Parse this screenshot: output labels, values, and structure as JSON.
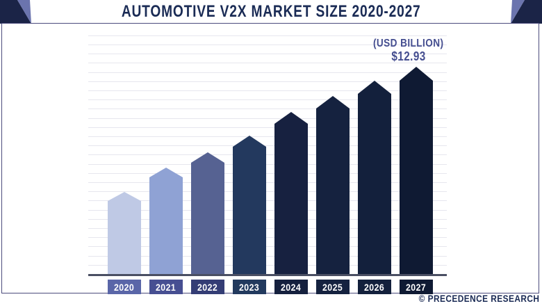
{
  "header": {
    "title": "AUTOMOTIVE V2X MARKET SIZE 2020-2027"
  },
  "annotation": {
    "unit_label": "(USD BILLION)",
    "value_label": "$12.93"
  },
  "footer": {
    "credit": "© PRECEDENCE RESEARCH"
  },
  "colors": {
    "title_text": "#1a2b55",
    "frame_border": "#4a4a7c",
    "corner_dark": "#1b2447",
    "corner_light": "#6b74ae",
    "gridline": "#e6e6ee",
    "axis": "#4a4f63",
    "annotation_text": "#454e90",
    "year_label_text": "#ffffff",
    "footer_text": "#1b2b55",
    "bar_colors": [
      "#bfc9e5",
      "#8fa2d4",
      "#566292",
      "#23395e",
      "#172140",
      "#15223f",
      "#13203c",
      "#0f1a33"
    ],
    "year_box_colors": [
      "#5a66a8",
      "#474f92",
      "#343d75",
      "#223a5e",
      "#15203e",
      "#15223f",
      "#13203c",
      "#0f1a33"
    ]
  },
  "chart_data": {
    "type": "bar",
    "title": "Automotive V2X Market Size 2020-2027",
    "unit": "USD Billion",
    "categories": [
      "2020",
      "2021",
      "2022",
      "2023",
      "2024",
      "2025",
      "2026",
      "2027"
    ],
    "values": [
      5.12,
      6.64,
      7.59,
      8.63,
      10.11,
      11.11,
      12.06,
      12.93
    ],
    "value_labels_shown": [
      {
        "category": "2027",
        "label": "$12.93"
      }
    ],
    "ylabel": "(USD BILLION)",
    "ylim": [
      0,
      13
    ],
    "grid": true,
    "legend": "none",
    "bar_shape": "pentagon-pointed-top"
  }
}
